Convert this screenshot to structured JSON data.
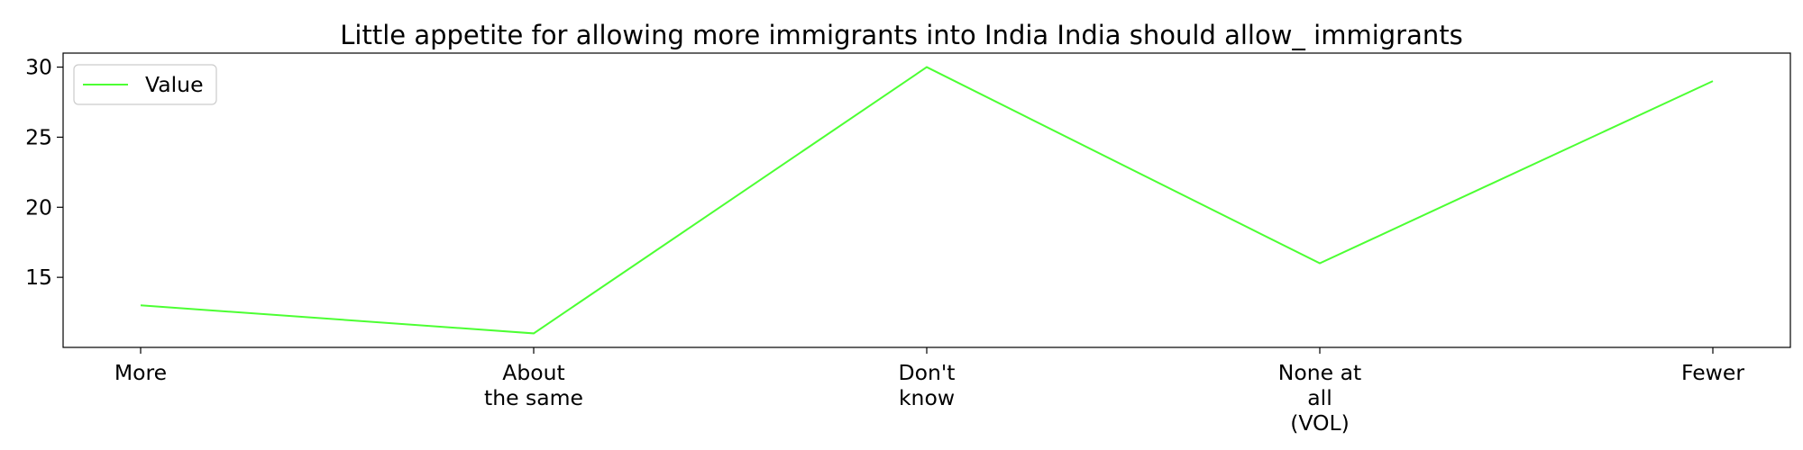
{
  "chart_data": {
    "type": "line",
    "title": "Little appetite for allowing more immigrants into India India should allow_ immigrants",
    "xlabel": "",
    "ylabel": "",
    "categories": [
      [
        "More"
      ],
      [
        "About",
        "the same"
      ],
      [
        "Don't",
        "know"
      ],
      [
        "None at",
        "all",
        "(VOL)"
      ],
      [
        "Fewer"
      ]
    ],
    "series": [
      {
        "name": "Value",
        "color": "#4cff33",
        "values": [
          13,
          11,
          30,
          16,
          29
        ]
      }
    ],
    "ylim": [
      10,
      31
    ],
    "yticks": [
      15,
      20,
      25,
      30
    ],
    "grid": false,
    "legend": "top-left"
  }
}
